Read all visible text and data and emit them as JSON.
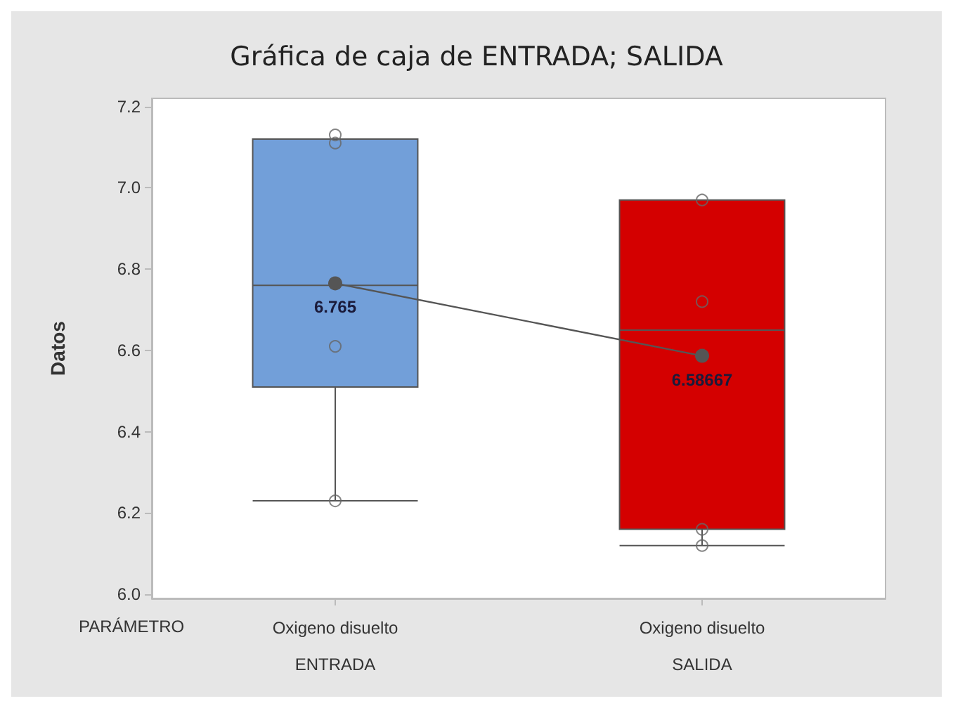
{
  "chart_data": {
    "type": "box",
    "title": "Gráfica de caja de ENTRADA; SALIDA",
    "ylabel": "Datos",
    "categories": [
      "Oxigeno disuelto\nENTRADA",
      "Oxigeno disuelto\nSALIDA"
    ],
    "colors": [
      "#729fd9",
      "#d40000"
    ],
    "boxes": [
      {
        "low": 6.23,
        "q1": 6.51,
        "median": 6.76,
        "q3": 7.12,
        "high": 7.12
      },
      {
        "low": 6.12,
        "q1": 6.16,
        "median": 6.65,
        "q3": 6.97,
        "high": 6.97
      }
    ],
    "series": [
      {
        "type": "scatter",
        "marker": "circle",
        "color": "#666666",
        "x": [
          "Oxigeno disuelto\nENTRADA",
          "Oxigeno disuelto\nENTRADA",
          "Oxigeno disuelto\nENTRADA",
          "Oxigeno disuelto\nENTRADA",
          "Oxigeno disuelto\nSALIDA",
          "Oxigeno disuelto\nSALIDA",
          "Oxigeno disuelto\nSALIDA",
          "Oxigeno disuelto\nSALIDA"
        ],
        "values": [
          7.13,
          7.11,
          6.61,
          6.23,
          6.97,
          6.72,
          6.16,
          6.12
        ]
      },
      {
        "type": "line",
        "marker": "circle",
        "color": "#555555",
        "values": [
          6.765,
          6.58667
        ],
        "value_labels": [
          "6.765",
          "6.58667"
        ]
      }
    ],
    "ylim": [
      5.99,
      7.22
    ],
    "yticks": [
      {
        "value": 6,
        "label": "6.0"
      },
      6.2,
      6.4,
      6.6,
      6.8,
      {
        "value": 7,
        "label": "7.0"
      },
      7.2
    ],
    "grid": false,
    "annotations": [
      "PARÁMETRO"
    ]
  }
}
